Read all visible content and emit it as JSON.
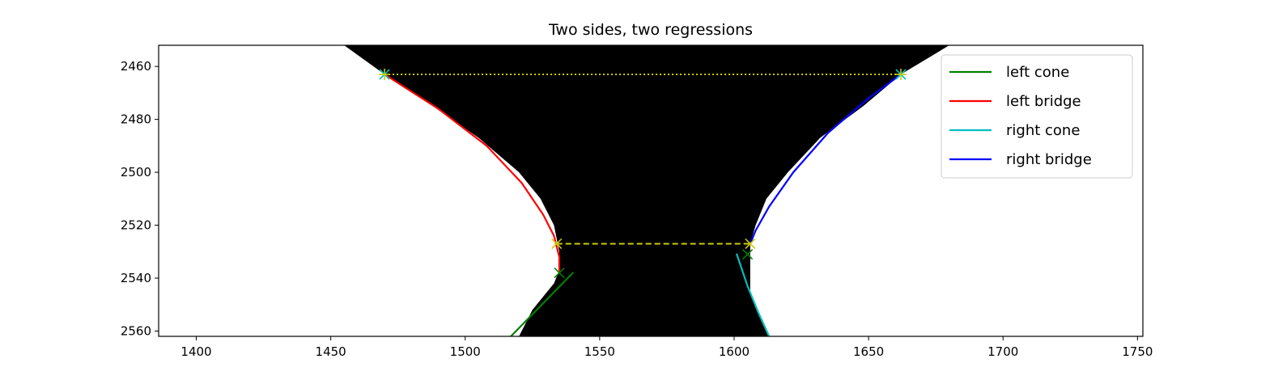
{
  "chart_data": {
    "type": "line",
    "title": "Two sides, two regressions",
    "xlabel": "",
    "ylabel": "",
    "xlim": [
      1386,
      1752
    ],
    "ylim": [
      2562,
      2452
    ],
    "y_inverted": true,
    "x_ticks": [
      1400,
      1450,
      1500,
      1550,
      1600,
      1650,
      1700,
      1750
    ],
    "y_ticks": [
      2460,
      2480,
      2500,
      2520,
      2540,
      2560
    ],
    "legend_position": "top-right",
    "grid": false,
    "background_image": {
      "description_hidden": true,
      "left_boundary": [
        [
          1455,
          2452
        ],
        [
          1470,
          2463
        ],
        [
          1488,
          2475
        ],
        [
          1505,
          2487
        ],
        [
          1520,
          2500
        ],
        [
          1528,
          2510
        ],
        [
          1533,
          2520
        ],
        [
          1535,
          2530
        ],
        [
          1535,
          2537
        ],
        [
          1533,
          2542
        ],
        [
          1525,
          2552
        ],
        [
          1520,
          2562
        ]
      ],
      "right_boundary": [
        [
          1680,
          2452
        ],
        [
          1662,
          2463
        ],
        [
          1648,
          2475
        ],
        [
          1632,
          2487
        ],
        [
          1620,
          2500
        ],
        [
          1612,
          2510
        ],
        [
          1608,
          2520
        ],
        [
          1606,
          2527
        ],
        [
          1606,
          2535
        ],
        [
          1606,
          2545
        ],
        [
          1610,
          2555
        ],
        [
          1613,
          2562
        ]
      ]
    },
    "series": [
      {
        "name": "left cone",
        "color": "#008000",
        "style": "solid",
        "x": [
          1517,
          1540
        ],
        "y": [
          2562,
          2538
        ]
      },
      {
        "name": "left bridge",
        "color": "#ff0000",
        "style": "solid",
        "x": [
          1470,
          1490,
          1508,
          1521,
          1529,
          1533,
          1535,
          1535
        ],
        "y": [
          2463,
          2476,
          2490,
          2504,
          2516,
          2524,
          2532,
          2538
        ]
      },
      {
        "name": "right cone",
        "color": "#00bfbf",
        "style": "solid",
        "x": [
          1601,
          1605,
          1609,
          1613
        ],
        "y": [
          2531,
          2543,
          2553,
          2562
        ]
      },
      {
        "name": "right bridge",
        "color": "#0000ff",
        "style": "solid",
        "x": [
          1662,
          1650,
          1635,
          1622,
          1613,
          1608,
          1606
        ],
        "y": [
          2463,
          2472,
          2485,
          2500,
          2513,
          2522,
          2527
        ]
      }
    ],
    "extra_lines": [
      {
        "color": "#cccc00",
        "style": "dotted",
        "x": [
          1470,
          1662
        ],
        "y": [
          2463,
          2463
        ]
      },
      {
        "color": "#cccc00",
        "style": "dashed",
        "x": [
          1534,
          1606
        ],
        "y": [
          2527,
          2527
        ]
      }
    ],
    "markers": [
      {
        "x": 1470,
        "y": 2463,
        "color": "#00bfbf",
        "shape": "x"
      },
      {
        "x": 1470,
        "y": 2463,
        "color": "#cccc00",
        "shape": "plus"
      },
      {
        "x": 1662,
        "y": 2463,
        "color": "#00bfbf",
        "shape": "x"
      },
      {
        "x": 1662,
        "y": 2463,
        "color": "#cccc00",
        "shape": "plus"
      },
      {
        "x": 1534,
        "y": 2527,
        "color": "#cccc00",
        "shape": "x"
      },
      {
        "x": 1606,
        "y": 2527,
        "color": "#cccc00",
        "shape": "x"
      },
      {
        "x": 1535,
        "y": 2538,
        "color": "#008000",
        "shape": "x"
      },
      {
        "x": 1605,
        "y": 2531,
        "color": "#008000",
        "shape": "x"
      }
    ]
  }
}
